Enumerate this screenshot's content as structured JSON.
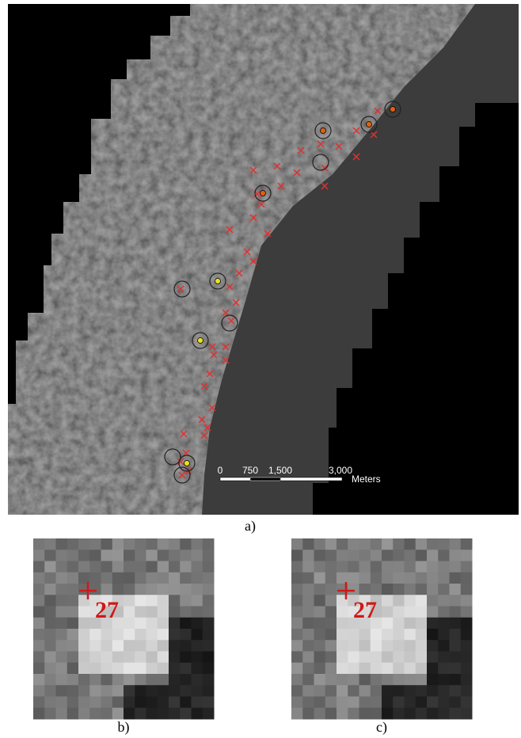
{
  "figure": {
    "panels": [
      {
        "label": "a)",
        "scale_bar": {
          "ticks": [
            "0",
            "750",
            "1,500",
            "3,000"
          ],
          "unit": "Meters"
        }
      },
      {
        "label": "b)",
        "annotation": "27"
      },
      {
        "label": "c)",
        "annotation": "27"
      }
    ]
  }
}
